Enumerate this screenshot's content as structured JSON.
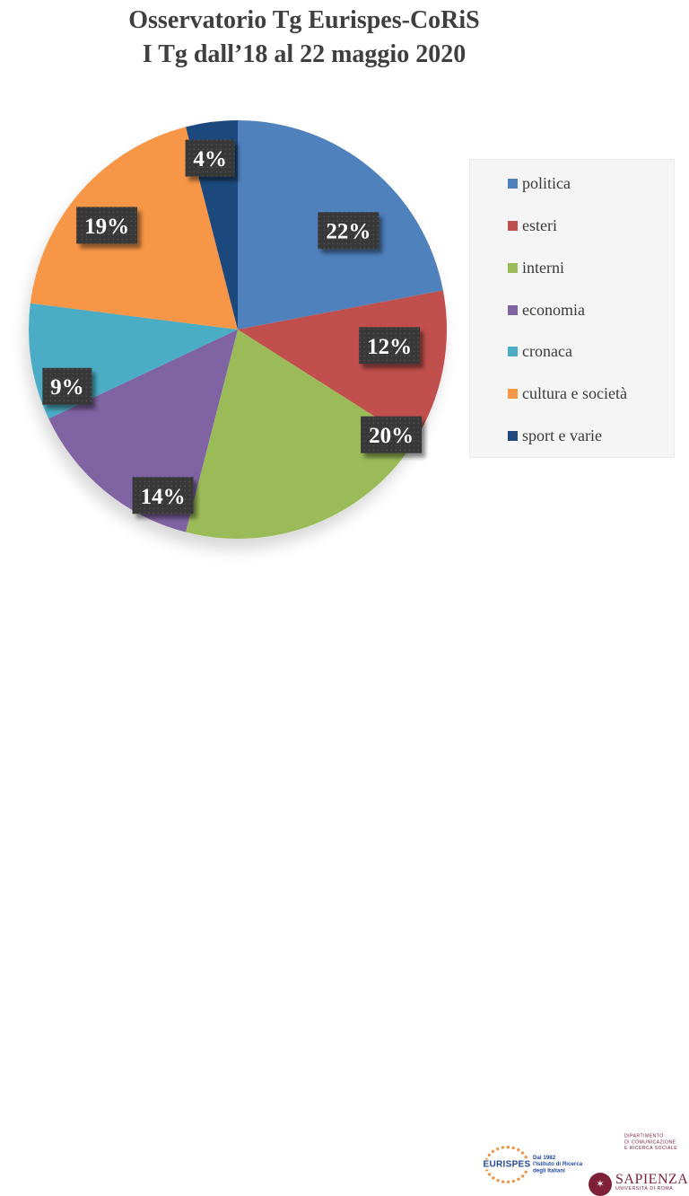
{
  "title": {
    "line1": "Osservatorio Tg Eurispes-CoRiS",
    "line2": "I Tg dall’18 al 22 maggio 2020"
  },
  "chart_data": {
    "type": "pie",
    "title": "Osservatorio Tg Eurispes-CoRiS — I Tg dall’18 al 22 maggio 2020",
    "categories": [
      "politica",
      "esteri",
      "interni",
      "economia",
      "cronaca",
      "cultura e società",
      "sport e varie"
    ],
    "values": [
      22,
      12,
      20,
      14,
      9,
      19,
      4
    ],
    "labels": [
      "22%",
      "12%",
      "20%",
      "14%",
      "9%",
      "19%",
      "4%"
    ],
    "colors": [
      "#4F81BD",
      "#C0504D",
      "#9BBB59",
      "#8064A2",
      "#4BACC6",
      "#F79646",
      "#1F497D"
    ],
    "start_angle": 0,
    "direction": "clockwise",
    "legend_position": "right",
    "data_label_style": "dark-box-white-text"
  },
  "footer": {
    "eurispes": {
      "name": "EURISPES",
      "tagline": [
        "Dal 1982",
        "l'Istituto di Ricerca",
        "degli Italiani"
      ]
    },
    "sapienza": {
      "department": [
        "Dipartimento",
        "di Comunicazione",
        "e Ricerca Sociale"
      ],
      "seal_icon": "sapienza-seal-icon",
      "name": "SAPIENZA",
      "subtitle": "Università di Roma"
    }
  },
  "colors": {
    "title_text": "#3f3f3f",
    "label_box": "#383838",
    "label_box_dot": "#515151",
    "label_text": "#ffffff",
    "legend_bg": "#f5f5f5",
    "eurispes_blue": "#23479e",
    "eurispes_orange": "#f0913e",
    "sapienza_red": "#7d2038"
  }
}
